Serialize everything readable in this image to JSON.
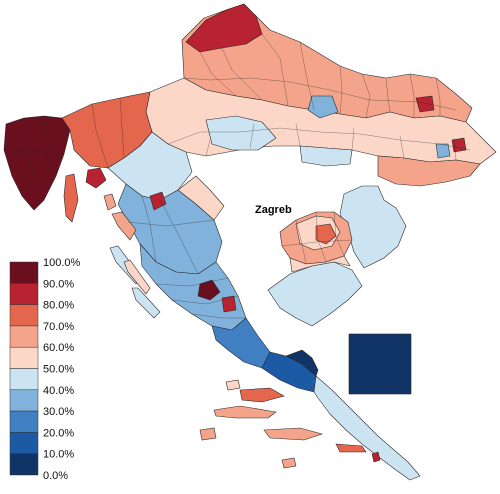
{
  "map": {
    "title": "",
    "inset_label": "Zagreb",
    "palette": {
      "b0": "#0f3465",
      "b1": "#1c5aa6",
      "b2": "#3f7fc2",
      "b3": "#80b2db",
      "b4": "#cce3f2",
      "r5": "#fcd7c8",
      "r6": "#f4a48a",
      "r7": "#e3664d",
      "r8": "#b92230",
      "r9": "#6a0f1e"
    },
    "legend": {
      "labels": [
        "100.0%",
        "90.0%",
        "80.0%",
        "70.0%",
        "60.0%",
        "50.0%",
        "40.0%",
        "30.0%",
        "20.0%",
        "10.0%",
        "0.0%"
      ],
      "colors": [
        "#6a0f1e",
        "#b92230",
        "#e3664d",
        "#f4a48a",
        "#fcd7c8",
        "#cce3f2",
        "#80b2db",
        "#3f7fc2",
        "#1c5aa6",
        "#0f3465"
      ]
    }
  }
}
